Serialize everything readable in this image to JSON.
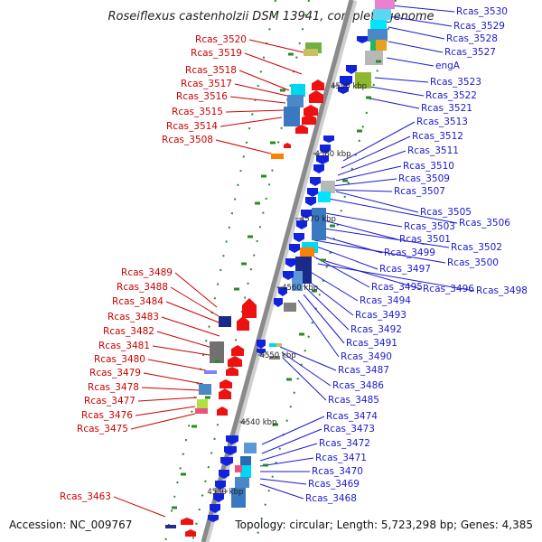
{
  "title": "Roseiflexus castenholzii DSM 13941, complete genome",
  "footer": {
    "accession": "Accession: NC_009767",
    "topology": "Topology: circular; Length: 5,723,298 bp; Genes: 4,385"
  },
  "colors": {
    "forward_arrow": "#ee1111",
    "reverse_arrow": "#1122dd",
    "backbone": "#888888",
    "tick": "#2a8a2a",
    "label_left": "#cc0000",
    "label_right": "#1a1acc"
  },
  "ticks": [
    "4530 kbp",
    "4540 kbp",
    "4550 kbp",
    "4560 kbp",
    "4570 kbp",
    "4580 kbp",
    "4590 kbp"
  ],
  "genes_left": [
    "Rcas_3520",
    "Rcas_3519",
    "Rcas_3518",
    "Rcas_3517",
    "Rcas_3516",
    "Rcas_3515",
    "Rcas_3514",
    "Rcas_3508",
    "Rcas_3489",
    "Rcas_3488",
    "Rcas_3484",
    "Rcas_3483",
    "Rcas_3482",
    "Rcas_3481",
    "Rcas_3480",
    "Rcas_3479",
    "Rcas_3478",
    "Rcas_3477",
    "Rcas_3476",
    "Rcas_3475",
    "Rcas_3463"
  ],
  "genes_right": [
    "Rcas_3530",
    "Rcas_3529",
    "Rcas_3528",
    "Rcas_3527",
    "engA",
    "Rcas_3523",
    "Rcas_3522",
    "Rcas_3521",
    "Rcas_3513",
    "Rcas_3512",
    "Rcas_3511",
    "Rcas_3510",
    "Rcas_3509",
    "Rcas_3507",
    "Rcas_3505",
    "Rcas_3506",
    "Rcas_3503",
    "Rcas_3501",
    "Rcas_3502",
    "Rcas_3499",
    "Rcas_3500",
    "Rcas_3497",
    "Rcas_3495",
    "Rcas_3496",
    "Rcas_3498",
    "Rcas_3494",
    "Rcas_3493",
    "Rcas_3492",
    "Rcas_3491",
    "Rcas_3490",
    "Rcas_3487",
    "Rcas_3486",
    "Rcas_3485",
    "Rcas_3474",
    "Rcas_3473",
    "Rcas_3472",
    "Rcas_3471",
    "Rcas_3470",
    "Rcas_3469",
    "Rcas_3468"
  ]
}
